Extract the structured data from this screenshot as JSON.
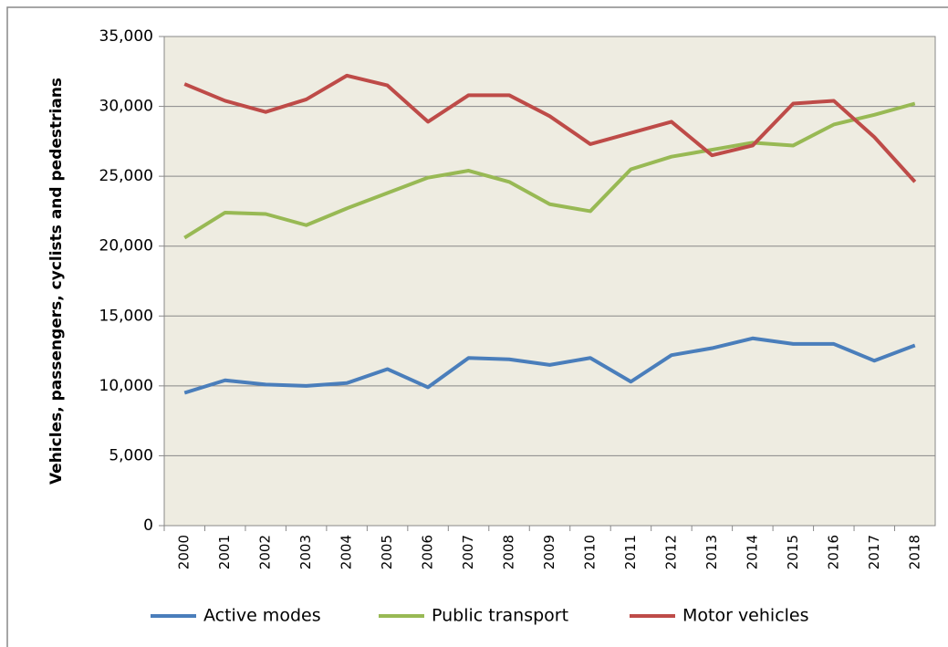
{
  "chart_data": {
    "type": "line",
    "y_label": "Vehicles, passengers, cyclists and pedestrians",
    "categories": [
      "2000",
      "2001",
      "2002",
      "2003",
      "2004",
      "2005",
      "2006",
      "2007",
      "2008",
      "2009",
      "2010",
      "2011",
      "2012",
      "2013",
      "2014",
      "2015",
      "2016",
      "2017",
      "2018"
    ],
    "series": [
      {
        "name": "Active modes",
        "color": "#4a7ebb",
        "values": [
          9500,
          10400,
          10100,
          10000,
          10200,
          11200,
          9900,
          12000,
          11900,
          11500,
          12000,
          10300,
          12200,
          12700,
          13400,
          13000,
          13000,
          11800,
          12900
        ]
      },
      {
        "name": "Public transport",
        "color": "#98b954",
        "values": [
          20600,
          22400,
          22300,
          21500,
          22700,
          23800,
          24900,
          25400,
          24600,
          23000,
          22500,
          25500,
          26400,
          26900,
          27400,
          27200,
          28700,
          29400,
          30200
        ]
      },
      {
        "name": "Motor vehicles",
        "color": "#be4b48",
        "values": [
          31600,
          30400,
          29600,
          30500,
          32200,
          31500,
          28900,
          30800,
          30800,
          29300,
          27300,
          28100,
          28900,
          26500,
          27200,
          30200,
          30400,
          27800,
          24600
        ]
      }
    ],
    "ylim": [
      0,
      35000
    ],
    "yticks": [
      0,
      {
        "value": 5000,
        "label": "5,000"
      },
      {
        "value": 10000,
        "label": "10,000"
      },
      {
        "value": 15000,
        "label": "15,000"
      },
      {
        "value": 20000,
        "label": "20,000"
      },
      {
        "value": 25000,
        "label": "25,000"
      },
      {
        "value": 30000,
        "label": "30,000"
      },
      {
        "value": 35000,
        "label": "35,000"
      }
    ],
    "grid": true,
    "legend": "bottom",
    "plot_background": "#eeece1"
  }
}
